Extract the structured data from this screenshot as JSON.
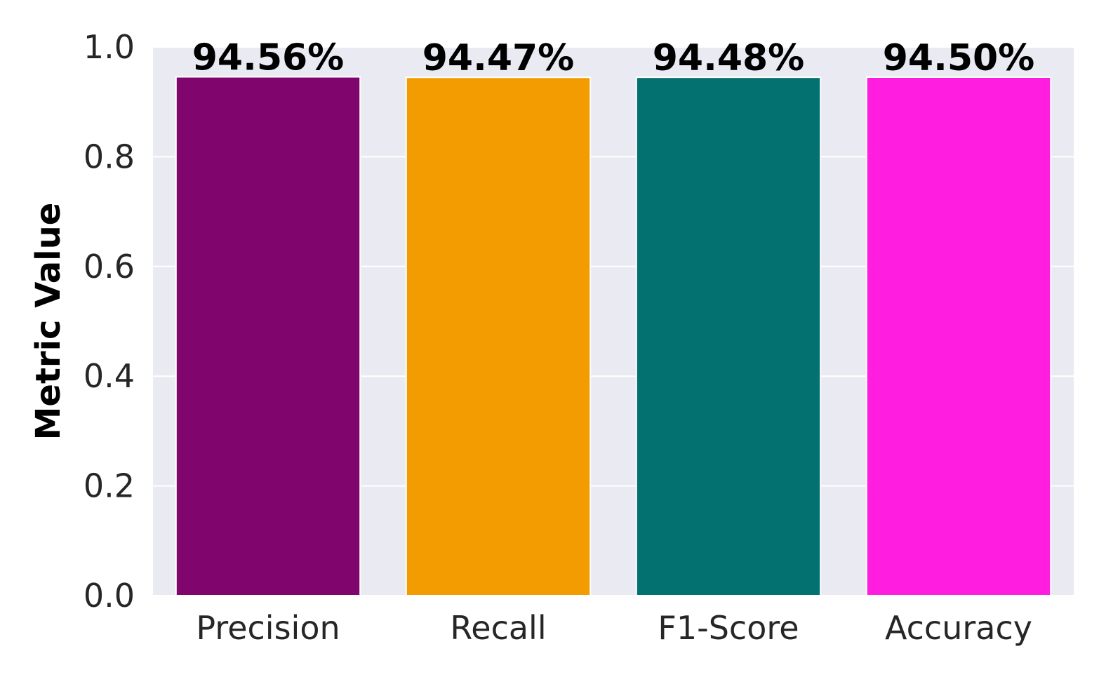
{
  "chart_data": {
    "type": "bar",
    "categories": [
      "Precision",
      "Recall",
      "F1-Score",
      "Accuracy"
    ],
    "values": [
      0.9456,
      0.9447,
      0.9448,
      0.945
    ],
    "data_labels": [
      "94.56%",
      "94.47%",
      "94.48%",
      "94.50%"
    ],
    "colors": [
      "#80066e",
      "#f39c02",
      "#027170",
      "#ff1ddf"
    ],
    "title": "",
    "xlabel": "",
    "ylabel": "Metric Value",
    "ylim": [
      0.0,
      1.0
    ],
    "yticks": [
      0.0,
      0.2,
      0.4,
      0.6,
      0.8,
      1.0
    ],
    "ytick_labels": [
      "0.0",
      "0.2",
      "0.4",
      "0.6",
      "0.8",
      "1.0"
    ],
    "grid": true,
    "legend": "none",
    "background_color": "#eaeaf2",
    "grid_color": "#ffffff"
  }
}
